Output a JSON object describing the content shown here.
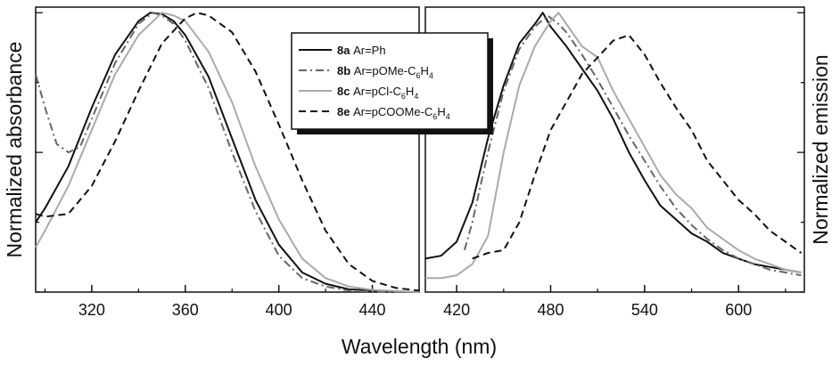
{
  "chart_data": {
    "type": "line",
    "xlabel": "Wavelength (nm)",
    "panels": [
      {
        "name": "absorbance",
        "ylabel": "Normalized absorbance",
        "xlim": [
          296,
          460
        ],
        "ylim": [
          0,
          1.02
        ],
        "x_ticks": [
          320,
          360,
          400,
          440
        ],
        "series": [
          {
            "name": "8a",
            "label": "Ar=Ph",
            "color": "#111111",
            "dash": "solid",
            "x": [
              296,
              300,
              310,
              320,
              330,
              340,
              345,
              350,
              355,
              360,
              370,
              380,
              390,
              400,
              410,
              420,
              430,
              440,
              460
            ],
            "y": [
              0.25,
              0.3,
              0.45,
              0.66,
              0.85,
              0.97,
              1.0,
              0.995,
              0.97,
              0.92,
              0.77,
              0.55,
              0.33,
              0.17,
              0.07,
              0.03,
              0.01,
              0.005,
              0
            ]
          },
          {
            "name": "8b",
            "label": "Ar=pOMe-C6H4",
            "color": "#666666",
            "dash": "dashdot",
            "x": [
              296,
              300,
              305,
              310,
              315,
              320,
              330,
              340,
              346,
              350,
              355,
              360,
              370,
              380,
              390,
              400,
              410,
              420,
              430,
              440,
              460
            ],
            "y": [
              0.78,
              0.66,
              0.53,
              0.5,
              0.52,
              0.62,
              0.82,
              0.96,
              1.0,
              0.99,
              0.96,
              0.9,
              0.73,
              0.5,
              0.29,
              0.13,
              0.05,
              0.02,
              0.005,
              0.002,
              0
            ]
          },
          {
            "name": "8c",
            "label": "Ar=pCl-C6H4",
            "color": "#aaaaaa",
            "dash": "solid",
            "x": [
              296,
              300,
              310,
              320,
              330,
              340,
              350,
              355,
              360,
              370,
              380,
              390,
              400,
              410,
              420,
              430,
              440,
              460
            ],
            "y": [
              0.16,
              0.22,
              0.38,
              0.58,
              0.78,
              0.92,
              1.0,
              0.99,
              0.97,
              0.86,
              0.68,
              0.45,
              0.26,
              0.12,
              0.05,
              0.02,
              0.008,
              0
            ]
          },
          {
            "name": "8e",
            "label": "Ar=pCOOMe-C6H4",
            "color": "#111111",
            "dash": "dashed",
            "x": [
              296,
              300,
              310,
              320,
              330,
              340,
              350,
              360,
              365,
              370,
              380,
              390,
              400,
              410,
              420,
              430,
              440,
              450,
              460
            ],
            "y": [
              0.28,
              0.27,
              0.28,
              0.38,
              0.54,
              0.72,
              0.89,
              0.98,
              1.0,
              0.99,
              0.93,
              0.79,
              0.6,
              0.4,
              0.22,
              0.1,
              0.04,
              0.015,
              0.005
            ]
          }
        ]
      },
      {
        "name": "emission",
        "ylabel": "Normalized emission",
        "xlim": [
          400,
          642
        ],
        "ylim": [
          0,
          1.02
        ],
        "x_ticks": [
          420,
          480,
          540,
          600
        ],
        "series": [
          {
            "name": "8a",
            "label": "Ar=Ph",
            "color": "#111111",
            "dash": "solid",
            "x": [
              400,
              410,
              420,
              430,
              440,
              450,
              460,
              470,
              475,
              480,
              490,
              500,
              510,
              520,
              530,
              540,
              550,
              560,
              570,
              580,
              590,
              600,
              610,
              620,
              630,
              640
            ],
            "y": [
              0.12,
              0.13,
              0.18,
              0.32,
              0.55,
              0.74,
              0.89,
              0.96,
              1.0,
              0.95,
              0.88,
              0.8,
              0.72,
              0.62,
              0.5,
              0.4,
              0.31,
              0.26,
              0.21,
              0.18,
              0.14,
              0.12,
              0.1,
              0.09,
              0.08,
              0.07
            ]
          },
          {
            "name": "8b",
            "label": "Ar=pOMe-C6H4",
            "color": "#666666",
            "dash": "dashdot",
            "x": [
              425,
              430,
              440,
              450,
              460,
              470,
              478,
              485,
              490,
              500,
              510,
              520,
              530,
              540,
              550,
              560,
              570,
              580,
              590,
              600,
              610,
              620,
              630,
              640
            ],
            "y": [
              0.15,
              0.25,
              0.5,
              0.72,
              0.87,
              0.95,
              0.99,
              0.96,
              0.93,
              0.85,
              0.76,
              0.66,
              0.56,
              0.47,
              0.38,
              0.3,
              0.24,
              0.19,
              0.15,
              0.12,
              0.1,
              0.08,
              0.07,
              0.06
            ]
          },
          {
            "name": "8c",
            "label": "Ar=pCl-C6H4",
            "color": "#aaaaaa",
            "dash": "solid",
            "x": [
              400,
              410,
              420,
              430,
              440,
              450,
              460,
              470,
              480,
              485,
              490,
              500,
              510,
              520,
              530,
              540,
              550,
              560,
              570,
              580,
              590,
              600,
              610,
              620,
              630,
              640
            ],
            "y": [
              0.05,
              0.05,
              0.06,
              0.1,
              0.2,
              0.5,
              0.74,
              0.88,
              0.97,
              1.0,
              0.96,
              0.88,
              0.84,
              0.72,
              0.62,
              0.52,
              0.42,
              0.35,
              0.3,
              0.23,
              0.19,
              0.15,
              0.12,
              0.1,
              0.08,
              0.07
            ]
          },
          {
            "name": "8e",
            "label": "Ar=pCOOMe-C6H4",
            "color": "#111111",
            "dash": "dashed",
            "x": [
              430,
              440,
              450,
              460,
              470,
              480,
              490,
              500,
              510,
              520,
              530,
              540,
              550,
              560,
              570,
              580,
              590,
              600,
              610,
              620,
              630,
              640
            ],
            "y": [
              0.12,
              0.14,
              0.15,
              0.25,
              0.42,
              0.58,
              0.68,
              0.78,
              0.84,
              0.9,
              0.92,
              0.85,
              0.75,
              0.66,
              0.58,
              0.47,
              0.4,
              0.33,
              0.28,
              0.22,
              0.18,
              0.14
            ]
          }
        ]
      }
    ],
    "legend": {
      "position": "top-center",
      "entries": [
        {
          "id": "8a",
          "text": "Ar=Ph",
          "color": "#111111",
          "dash": "solid"
        },
        {
          "id": "8b",
          "text": "Ar=pOMe-C",
          "sub1": "6",
          "text2": "H",
          "sub2": "4",
          "color": "#666666",
          "dash": "dashdot"
        },
        {
          "id": "8c",
          "text": "Ar=pCl-C",
          "sub1": "6",
          "text2": "H",
          "sub2": "4",
          "color": "#aaaaaa",
          "dash": "solid"
        },
        {
          "id": "8e",
          "text": "Ar=pCOOMe-C",
          "sub1": "6",
          "text2": "H",
          "sub2": "4",
          "color": "#111111",
          "dash": "dashed"
        }
      ]
    },
    "grid": false
  }
}
